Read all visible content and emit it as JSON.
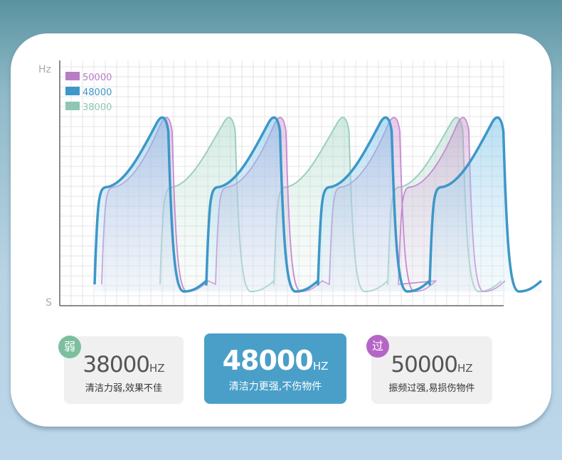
{
  "axis": {
    "y_label": "Hz",
    "x_label": "S"
  },
  "legend": [
    {
      "label": "50000"
    },
    {
      "label": "48000"
    },
    {
      "label": "38000"
    }
  ],
  "cards": [
    {
      "badge": "弱",
      "value": "38000",
      "unit": "HZ",
      "description": "清洁力弱,效果不佳"
    },
    {
      "value": "48000",
      "unit": "HZ",
      "description": "清洁力更强,不伤物件"
    },
    {
      "badge": "过",
      "value": "50000",
      "unit": "HZ",
      "description": "振频过强,易损伤物件"
    }
  ]
}
